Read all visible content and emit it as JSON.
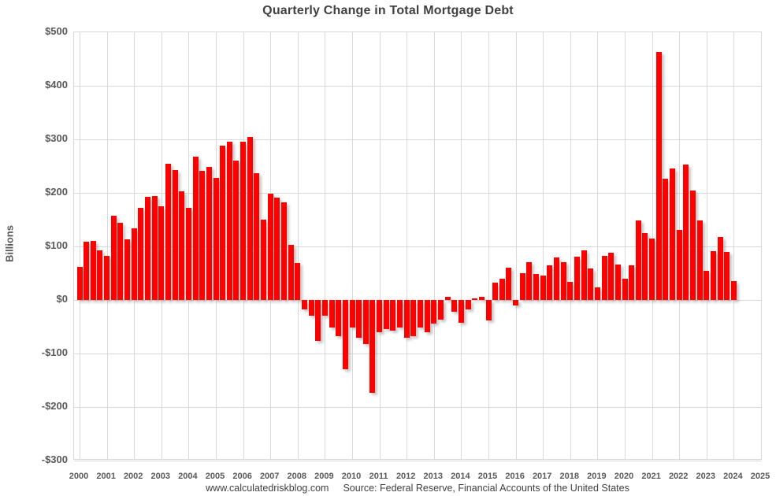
{
  "page": {
    "title": "Quarterly Change in Total Mortgage Debt",
    "footer": {
      "site": "www.calculatedriskblog.com",
      "source": "Source: Federal Reserve, Financial Accounts of the United States"
    }
  },
  "chart_data": {
    "type": "bar",
    "title": "Quarterly Change in Total Mortgage Debt",
    "xlabel": "",
    "ylabel": "Billions",
    "ylim": [
      -300,
      500
    ],
    "y_tick_step": 100,
    "y_ticks": [
      "$500",
      "$400",
      "$300",
      "$200",
      "$100",
      "$0",
      "-$100",
      "-$200",
      "-$300"
    ],
    "x_tick_labels": [
      "2000",
      "2001",
      "2002",
      "2003",
      "2004",
      "2005",
      "2006",
      "2007",
      "2008",
      "2009",
      "2010",
      "2011",
      "2012",
      "2013",
      "2014",
      "2015",
      "2016",
      "2017",
      "2018",
      "2019",
      "2020",
      "2021",
      "2022",
      "2023",
      "2024",
      "2025"
    ],
    "grid": true,
    "legend": "none",
    "bar_color": "#ff0000",
    "grid_color": "#d9d9d9",
    "label_color": "#595959",
    "series_name": "Quarterly change in total mortgage debt ($ billions)",
    "quarters": [
      "2000Q1",
      "2000Q2",
      "2000Q3",
      "2000Q4",
      "2001Q1",
      "2001Q2",
      "2001Q3",
      "2001Q4",
      "2002Q1",
      "2002Q2",
      "2002Q3",
      "2002Q4",
      "2003Q1",
      "2003Q2",
      "2003Q3",
      "2003Q4",
      "2004Q1",
      "2004Q2",
      "2004Q3",
      "2004Q4",
      "2005Q1",
      "2005Q2",
      "2005Q3",
      "2005Q4",
      "2006Q1",
      "2006Q2",
      "2006Q3",
      "2006Q4",
      "2007Q1",
      "2007Q2",
      "2007Q3",
      "2007Q4",
      "2008Q1",
      "2008Q2",
      "2008Q3",
      "2008Q4",
      "2009Q1",
      "2009Q2",
      "2009Q3",
      "2009Q4",
      "2010Q1",
      "2010Q2",
      "2010Q3",
      "2010Q4",
      "2011Q1",
      "2011Q2",
      "2011Q3",
      "2011Q4",
      "2012Q1",
      "2012Q2",
      "2012Q3",
      "2012Q4",
      "2013Q1",
      "2013Q2",
      "2013Q3",
      "2013Q4",
      "2014Q1",
      "2014Q2",
      "2014Q3",
      "2014Q4",
      "2015Q1",
      "2015Q2",
      "2015Q3",
      "2015Q4",
      "2016Q1",
      "2016Q2",
      "2016Q3",
      "2016Q4",
      "2017Q1",
      "2017Q2",
      "2017Q3",
      "2017Q4",
      "2018Q1",
      "2018Q2",
      "2018Q3",
      "2018Q4",
      "2019Q1",
      "2019Q2",
      "2019Q3",
      "2019Q4",
      "2020Q1",
      "2020Q2",
      "2020Q3",
      "2020Q4",
      "2021Q1",
      "2021Q2",
      "2021Q3",
      "2021Q4",
      "2022Q1",
      "2022Q2",
      "2022Q3",
      "2022Q4",
      "2023Q1",
      "2023Q2",
      "2023Q3",
      "2023Q4",
      "2024Q1"
    ],
    "values": [
      62,
      109,
      111,
      93,
      82,
      157,
      144,
      113,
      134,
      172,
      192,
      194,
      175,
      255,
      242,
      203,
      172,
      268,
      241,
      249,
      228,
      288,
      295,
      260,
      295,
      305,
      237,
      150,
      199,
      191,
      182,
      103,
      69,
      -18,
      -30,
      -77,
      -29,
      -51,
      -68,
      -130,
      -51,
      -71,
      -83,
      -173,
      -61,
      -55,
      -58,
      -51,
      -70,
      -68,
      -51,
      -61,
      -44,
      -37,
      6,
      -22,
      -43,
      -18,
      3,
      6,
      -38,
      33,
      40,
      61,
      -11,
      50,
      70,
      49,
      46,
      65,
      80,
      71,
      34,
      81,
      93,
      59,
      23,
      83,
      88,
      66,
      39,
      65,
      148,
      125,
      114,
      463,
      226,
      245,
      131,
      253,
      205,
      148,
      54,
      91,
      118,
      89,
      35
    ]
  }
}
